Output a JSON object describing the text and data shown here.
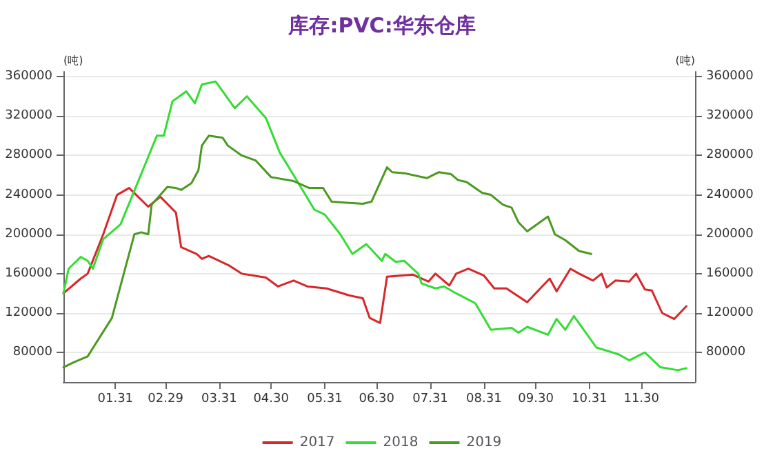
{
  "chart_data": {
    "type": "line",
    "title": "库存:PVC:华东仓库",
    "ylabel": "(吨)",
    "y2label": "(吨)",
    "xlim": [
      "--01-01",
      "--12-31"
    ],
    "xticks": [
      {
        "value": "--01-31",
        "label": "01.31"
      },
      {
        "value": "--02-29",
        "label": "02.29"
      },
      {
        "value": "--03-31",
        "label": "03.31"
      },
      {
        "value": "--04-30",
        "label": "04.30"
      },
      {
        "value": "--05-31",
        "label": "05.31"
      },
      {
        "value": "--06-30",
        "label": "06.30"
      },
      {
        "value": "--07-31",
        "label": "07.31"
      },
      {
        "value": "--08-31",
        "label": "08.31"
      },
      {
        "value": "--09-30",
        "label": "09.30"
      },
      {
        "value": "--10-31",
        "label": "10.31"
      },
      {
        "value": "--11-30",
        "label": "11.30"
      }
    ],
    "ylim": [
      50000,
      365000
    ],
    "yticks": [
      80000,
      120000,
      160000,
      200000,
      240000,
      280000,
      320000,
      360000
    ],
    "y2lim": [
      50000,
      365000
    ],
    "y2ticks": [
      80000,
      120000,
      160000,
      200000,
      240000,
      280000,
      320000,
      360000
    ],
    "grid": "y",
    "legend": "bottom",
    "marker": "none",
    "line_style": "solid",
    "series": [
      {
        "name": "2017",
        "color": "#d9262a",
        "x": [
          "--01-01",
          "--01-11",
          "--01-15",
          "--01-24",
          "--02-01",
          "--02-08",
          "--02-19",
          "--02-26",
          "--03-06",
          "--03-09",
          "--03-18",
          "--03-21",
          "--03-25",
          "--04-06",
          "--04-13",
          "--04-27",
          "--05-04",
          "--05-13",
          "--05-21",
          "--06-01",
          "--06-14",
          "--06-22",
          "--06-26",
          "--07-02",
          "--07-06",
          "--07-21",
          "--07-30",
          "--08-03",
          "--08-11",
          "--08-15",
          "--08-22",
          "--08-31",
          "--09-06",
          "--09-13",
          "--09-25",
          "--10-08",
          "--10-12",
          "--10-20",
          "--10-25",
          "--11-02",
          "--11-07",
          "--11-10",
          "--11-15",
          "--11-23",
          "--11-27",
          "--12-02",
          "--12-06",
          "--12-12",
          "--12-19",
          "--12-26"
        ],
        "values": [
          140000,
          155000,
          160000,
          200000,
          240000,
          247000,
          228000,
          238000,
          222000,
          187000,
          180000,
          175000,
          178000,
          168000,
          160000,
          156000,
          147000,
          153000,
          147000,
          145000,
          138000,
          135000,
          115000,
          110000,
          157000,
          159000,
          152000,
          160000,
          148000,
          160000,
          165000,
          158000,
          145000,
          145000,
          131000,
          155000,
          142000,
          165000,
          160000,
          153000,
          160000,
          146000,
          153000,
          152000,
          160000,
          144000,
          143000,
          120000,
          114000,
          127000
        ]
      },
      {
        "name": "2018",
        "color": "#33dd33",
        "x": [
          "--01-01",
          "--01-04",
          "--01-11",
          "--01-15",
          "--01-18",
          "--01-24",
          "--02-03",
          "--02-17",
          "--02-24",
          "--02-28",
          "--03-04",
          "--03-12",
          "--03-17",
          "--03-21",
          "--03-29",
          "--04-09",
          "--04-16",
          "--04-27",
          "--05-05",
          "--05-13",
          "--05-25",
          "--05-31",
          "--06-09",
          "--06-16",
          "--06-24",
          "--07-03",
          "--07-05",
          "--07-11",
          "--07-16",
          "--07-24",
          "--07-26",
          "--08-03",
          "--08-08",
          "--08-15",
          "--08-26",
          "--09-04",
          "--09-16",
          "--09-20",
          "--09-25",
          "--10-07",
          "--10-12",
          "--10-17",
          "--10-22",
          "--11-04",
          "--11-17",
          "--11-23",
          "--12-02",
          "--12-11",
          "--12-21",
          "--12-26"
        ],
        "values": [
          140000,
          165000,
          177000,
          173000,
          165000,
          195000,
          210000,
          270000,
          300000,
          300000,
          335000,
          345000,
          333000,
          352000,
          355000,
          328000,
          340000,
          318000,
          283000,
          260000,
          225000,
          220000,
          200000,
          180000,
          190000,
          173000,
          180000,
          172000,
          173000,
          160000,
          150000,
          145000,
          147000,
          140000,
          130000,
          103000,
          105000,
          100000,
          106000,
          98000,
          114000,
          103000,
          117000,
          85000,
          78000,
          72000,
          80000,
          65000,
          62000,
          64000
        ]
      },
      {
        "name": "2019",
        "color": "#4a9a1f",
        "x": [
          "--01-01",
          "--01-07",
          "--01-15",
          "--01-29",
          "--02-11",
          "--02-15",
          "--02-19",
          "--02-21",
          "--03-01",
          "--03-06",
          "--03-09",
          "--03-15",
          "--03-19",
          "--03-21",
          "--03-25",
          "--04-02",
          "--04-05",
          "--04-13",
          "--04-21",
          "--04-30",
          "--05-13",
          "--05-22",
          "--05-30",
          "--06-04",
          "--06-22",
          "--06-27",
          "--07-06",
          "--07-09",
          "--07-16",
          "--07-29",
          "--08-05",
          "--08-12",
          "--08-16",
          "--08-21",
          "--08-30",
          "--09-04",
          "--09-11",
          "--09-16",
          "--09-20",
          "--09-25",
          "--10-07",
          "--10-11",
          "--10-17",
          "--10-25",
          "--11-01"
        ],
        "values": [
          65000,
          70000,
          76000,
          115000,
          200000,
          202000,
          200000,
          230000,
          248000,
          247000,
          245000,
          252000,
          265000,
          290000,
          300000,
          298000,
          290000,
          280000,
          275000,
          258000,
          254000,
          247000,
          247000,
          233000,
          231000,
          233000,
          268000,
          263000,
          262000,
          257000,
          263000,
          261000,
          255000,
          253000,
          242000,
          240000,
          230000,
          227000,
          212000,
          203000,
          218000,
          200000,
          194000,
          183000,
          180000
        ]
      }
    ]
  }
}
